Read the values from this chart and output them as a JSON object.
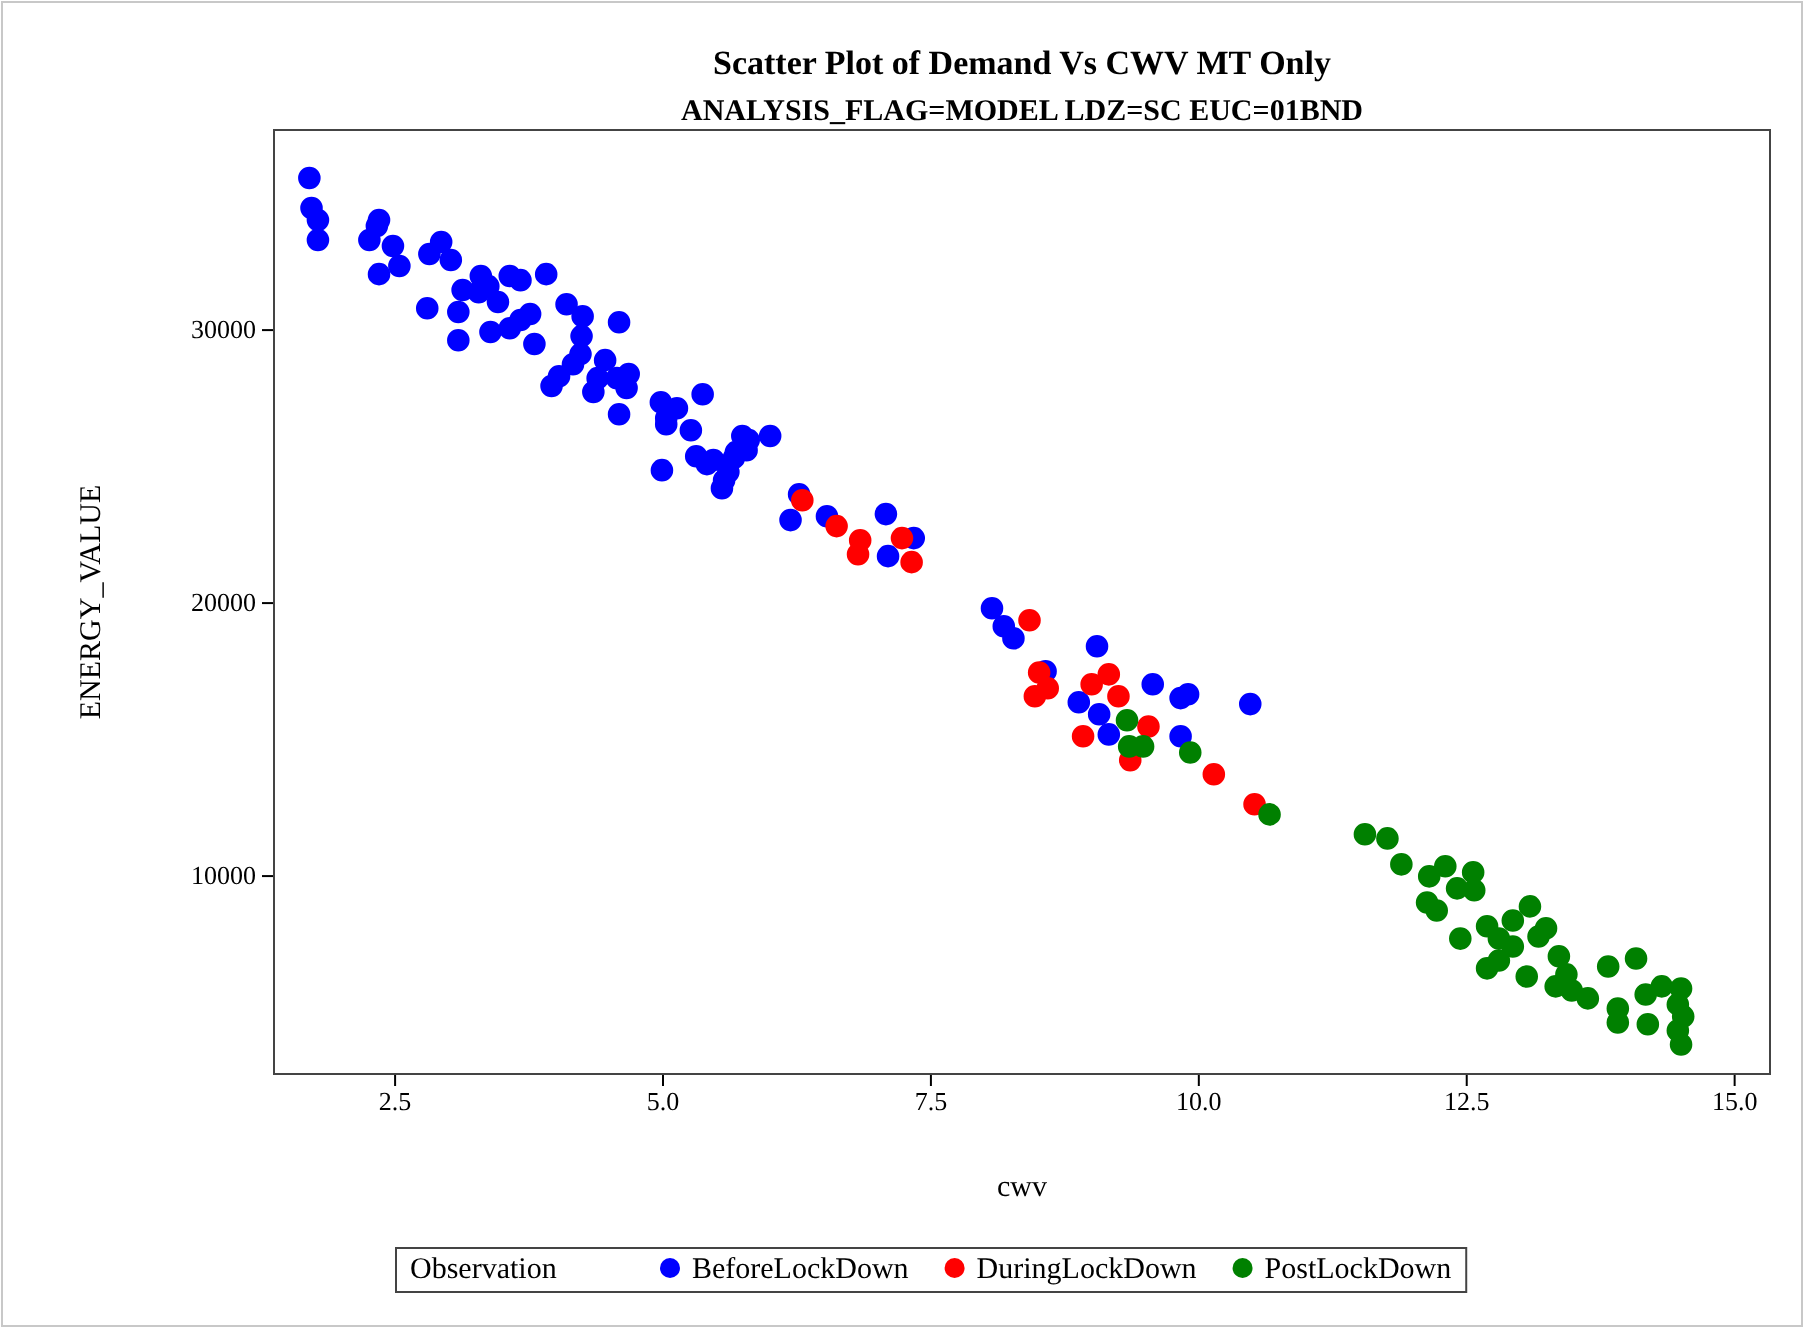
{
  "chart_data": {
    "type": "scatter",
    "title": "Scatter Plot of Demand Vs CWV MT Only",
    "subtitle": "ANALYSIS_FLAG=MODEL LDZ=SC EUC=01BND",
    "xlabel": "cwv",
    "ylabel": "ENERGY_VALUE",
    "legend_title": "Observation",
    "legend": "bottom",
    "marker": "circle",
    "xlim": [
      1.37,
      15.33
    ],
    "ylim": [
      2750,
      37330
    ],
    "xticks": [
      2.5,
      {
        "value": 5,
        "label": "5.0"
      },
      7.5,
      {
        "value": 10,
        "label": "10.0"
      },
      12.5,
      {
        "value": 15,
        "label": "15.0"
      }
    ],
    "yticks": [
      10000,
      20000,
      30000
    ],
    "series": [
      {
        "name": "BeforeLockDown",
        "color": "#0000ff",
        "x": [
          1.7,
          1.72,
          1.78,
          1.78,
          2.26,
          2.33,
          2.35,
          2.48,
          2.35,
          2.54,
          2.82,
          2.93,
          3.02,
          2.8,
          3.09,
          3.3,
          3.28,
          3.37,
          3.13,
          3.57,
          3.46,
          3.67,
          3.91,
          3.67,
          3.57,
          3.39,
          3.09,
          3.76,
          4.1,
          4.25,
          3.8,
          3.96,
          4.03,
          4.16,
          4.23,
          4.24,
          4.35,
          4.39,
          4.46,
          4.59,
          4.57,
          4.66,
          4.68,
          4.59,
          4.99,
          4.98,
          5.03,
          5.03,
          5.13,
          5.26,
          5.37,
          5.31,
          5.41,
          5.55,
          5.61,
          5.68,
          5.8,
          5.74,
          5.78,
          6.0,
          5.57,
          5.66,
          5.47,
          6.27,
          6.19,
          6.53,
          7.08,
          7.1,
          7.34,
          8.07,
          8.18,
          8.27,
          9.05,
          8.57,
          8.88,
          9.07,
          9.57,
          9.83,
          9.9,
          10.48,
          9.16,
          9.83
        ],
        "values": [
          35570,
          34470,
          34030,
          33300,
          33300,
          33810,
          34030,
          33080,
          32050,
          32350,
          32790,
          33230,
          32570,
          30800,
          30660,
          31980,
          31390,
          31610,
          31470,
          31980,
          31030,
          31830,
          32050,
          30370,
          30070,
          29930,
          29630,
          30590,
          30950,
          30510,
          29490,
          27950,
          28310,
          28750,
          29120,
          29780,
          27730,
          28240,
          28900,
          30290,
          28240,
          27880,
          28390,
          26920,
          24870,
          27360,
          26770,
          26550,
          27140,
          26330,
          27650,
          25380,
          25090,
          24210,
          24800,
          25530,
          25970,
          26120,
          25600,
          26120,
          24500,
          25310,
          25240,
          23990,
          23040,
          23180,
          23260,
          21720,
          22380,
          19810,
          19150,
          18710,
          18420,
          17500,
          16370,
          15930,
          17030,
          16520,
          16660,
          16300,
          15190,
          15120
        ]
      },
      {
        "name": "DuringLockDown",
        "color": "#ff0000",
        "x": [
          6.3,
          6.62,
          6.75,
          6.84,
          6.82,
          7.23,
          7.32,
          8.42,
          8.51,
          8.59,
          8.47,
          9.0,
          9.16,
          9.25,
          8.92,
          9.53,
          9.36,
          10.14,
          10.52
        ],
        "values": [
          23770,
          22820,
          null,
          22300,
          21790,
          22380,
          21500,
          19370,
          17460,
          16880,
          16590,
          17030,
          17390,
          16590,
          15120,
          15480,
          14240,
          13730,
          12630
        ]
      },
      {
        "name": "PostLockDown",
        "color": "#008000",
        "x": [
          9.33,
          9.35,
          9.48,
          9.92,
          10.66,
          11.55,
          11.76,
          11.89,
          12.15,
          12.3,
          12.56,
          12.41,
          12.57,
          12.13,
          12.22,
          12.44,
          12.69,
          12.93,
          13.09,
          13.24,
          12.8,
          13.02,
          13.17,
          12.69,
          13.06,
          13.36,
          13.43,
          13.33,
          13.48,
          13.63,
          13.82,
          14.08,
          13.91,
          13.91,
          14.17,
          14.19,
          14.32,
          14.5,
          14.47,
          14.52,
          14.47,
          14.5,
          12.8,
          12.93
        ],
        "values": [
          15710,
          14750,
          14750,
          14530,
          12260,
          11530,
          11380,
          10430,
          9990,
          10360,
          10140,
          9550,
          9480,
          9030,
          8740,
          7710,
          8160,
          8370,
          8890,
          8090,
          7710,
          null,
          7790,
          6620,
          6320,
          7060,
          6400,
          5960,
          5810,
          5520,
          6690,
          6980,
          5150,
          4640,
          5660,
          4570,
          5960,
          5880,
          5300,
          4860,
          4340,
          3830,
          6910,
          7420
        ]
      }
    ]
  }
}
